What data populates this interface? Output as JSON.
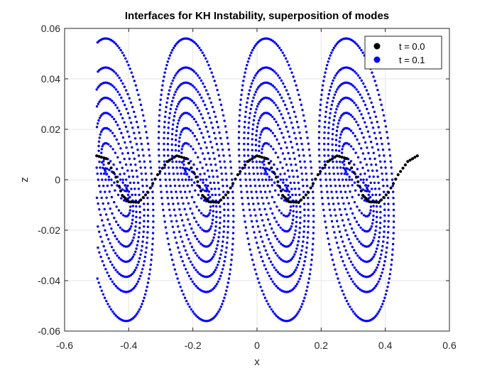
{
  "chart_data": {
    "type": "scatter",
    "title": "Interfaces for KH Instability, superposition of modes",
    "xlabel": "x",
    "ylabel": "z",
    "xlim": [
      -0.6,
      0.6
    ],
    "ylim": [
      -0.06,
      0.06
    ],
    "grid": true,
    "legend_position": "top-right",
    "x_ticks": [
      -0.6,
      -0.4,
      -0.2,
      0,
      0.2,
      0.4,
      0.6
    ],
    "x_tick_labels": [
      "-0.6",
      "-0.4",
      "-0.2",
      "0",
      "0.2",
      "0.4",
      "0.6"
    ],
    "y_ticks": [
      -0.06,
      -0.04,
      -0.02,
      0,
      0.02,
      0.04,
      0.06
    ],
    "y_tick_labels": [
      "-0.06",
      "-0.04",
      "-0.02",
      "0",
      "0.02",
      "0.04",
      "0.06"
    ],
    "series": [
      {
        "name": "t = 0.0",
        "color": "#000000",
        "x": [
          -0.5,
          -0.47,
          -0.44,
          -0.42,
          -0.4,
          -0.37,
          -0.34,
          -0.31,
          -0.28,
          -0.25,
          -0.22,
          -0.19,
          -0.17,
          -0.15,
          -0.12,
          -0.09,
          -0.06,
          -0.03,
          0.0,
          0.03,
          0.06,
          0.08,
          0.1,
          0.13,
          0.16,
          0.19,
          0.22,
          0.25,
          0.28,
          0.31,
          0.33,
          0.35,
          0.38,
          0.41,
          0.44,
          0.47,
          0.5
        ],
        "values": [
          0.0095,
          0.0084,
          0.001,
          -0.0062,
          -0.0087,
          -0.009,
          -0.005,
          0.002,
          0.0072,
          0.0095,
          0.0084,
          0.001,
          -0.0062,
          -0.0087,
          -0.009,
          -0.005,
          0.002,
          0.0072,
          0.0095,
          0.0084,
          0.001,
          -0.0062,
          -0.0087,
          -0.009,
          -0.005,
          0.002,
          0.0072,
          0.0095,
          0.0084,
          0.001,
          -0.0062,
          -0.0087,
          -0.009,
          -0.005,
          0.002,
          0.0072,
          0.0095
        ]
      },
      {
        "name": "t = 0.1",
        "color": "#0000ff",
        "loop_centers_x": [
          -0.44,
          -0.19,
          0.06,
          0.31
        ],
        "loop_amplitudes": [
          0.056,
          0.0445,
          0.0385,
          0.0325,
          0.0265,
          0.0205,
          0.0145,
          0.0085,
          0.0045
        ],
        "loop_half_widths": [
          0.112,
          0.095,
          0.082,
          0.068,
          0.055,
          0.043,
          0.032,
          0.022,
          0.014
        ],
        "loop_tilt": 0.032
      }
    ]
  }
}
